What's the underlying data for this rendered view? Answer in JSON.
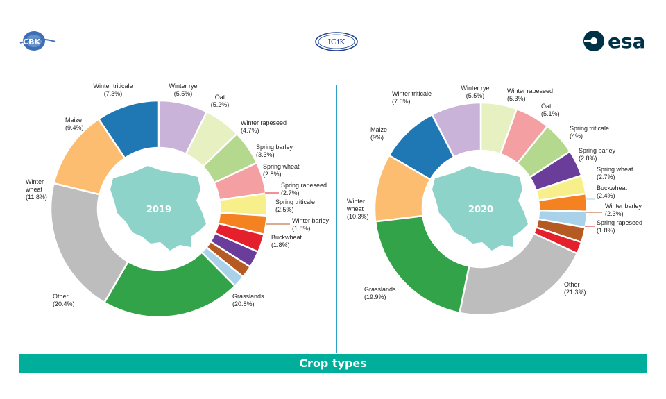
{
  "logos": {
    "left": "CBK",
    "center": "IGiK",
    "right": "esa"
  },
  "footer": {
    "title": "Crop types"
  },
  "colors": {
    "Winter triticale": "#c9b3d9",
    "Winter rye": "#e6f0c0",
    "Oat": "#b4d98e",
    "Winter rapeseed": "#f4a0a2",
    "Spring barley": "#f7f08a",
    "Spring wheat": "#f58220",
    "Spring rapeseed": "#e3202c",
    "Spring triticale": "#6a3d9a",
    "Winter barley": "#b65a24",
    "Buckwheat": "#a9d1ea",
    "Grasslands": "#33a34a",
    "Other": "#bdbdbd",
    "Winter wheat": "#fdbd70",
    "Maize": "#1f78b4",
    "map": "#8ed3c9"
  },
  "chart_data": [
    {
      "type": "pie",
      "center_label": "2019",
      "slices": [
        {
          "name": "Winter triticale",
          "value": 7.3,
          "label": "Winter triticale",
          "pct": "(7.3%)"
        },
        {
          "name": "Winter rye",
          "value": 5.5,
          "label": "Winter rye",
          "pct": "(5.5%)"
        },
        {
          "name": "Oat",
          "value": 5.2,
          "label": "Oat",
          "pct": "(5.2%)"
        },
        {
          "name": "Winter rapeseed",
          "value": 4.7,
          "label": "Winter rapeseed",
          "pct": "(4.7%)"
        },
        {
          "name": "Spring barley",
          "value": 3.3,
          "label": "Spring barley",
          "pct": "(3.3%)"
        },
        {
          "name": "Spring wheat",
          "value": 2.8,
          "label": "Spring wheat",
          "pct": "(2.8%)"
        },
        {
          "name": "Spring rapeseed",
          "value": 2.7,
          "label": "Spring rapeseed",
          "pct": "(2.7%)"
        },
        {
          "name": "Spring triticale",
          "value": 2.5,
          "label": "Spring triticale",
          "pct": "(2.5%)"
        },
        {
          "name": "Winter barley",
          "value": 1.8,
          "label": "Winter barley",
          "pct": "(1.8%)"
        },
        {
          "name": "Buckwheat",
          "value": 1.8,
          "label": "Buckwheat",
          "pct": "(1.8%)"
        },
        {
          "name": "Grasslands",
          "value": 20.8,
          "label": "Grasslands",
          "pct": "(20.8%)"
        },
        {
          "name": "Other",
          "value": 20.4,
          "label": "Other",
          "pct": "(20.4%)"
        },
        {
          "name": "Winter wheat",
          "value": 11.8,
          "label": "Winter wheat",
          "pct": "(11.8%)"
        },
        {
          "name": "Maize",
          "value": 9.4,
          "label": "Maize",
          "pct": "(9.4%)"
        }
      ]
    },
    {
      "type": "pie",
      "center_label": "2020",
      "slices": [
        {
          "name": "Winter rye",
          "value": 5.5,
          "label": "Winter rye",
          "pct": "(5.5%)"
        },
        {
          "name": "Winter rapeseed",
          "value": 5.3,
          "label": "Winter rapeseed",
          "pct": "(5.3%)"
        },
        {
          "name": "Oat",
          "value": 5.1,
          "label": "Oat",
          "pct": "(5.1%)"
        },
        {
          "name": "Spring triticale",
          "value": 4.0,
          "label": "Spring triticale",
          "pct": "(4%)"
        },
        {
          "name": "Spring barley",
          "value": 2.8,
          "label": "Spring barley",
          "pct": "(2.8%)"
        },
        {
          "name": "Spring wheat",
          "value": 2.7,
          "label": "Spring wheat",
          "pct": "(2.7%)"
        },
        {
          "name": "Buckwheat",
          "value": 2.4,
          "label": "Buckwheat",
          "pct": "(2.4%)"
        },
        {
          "name": "Winter barley",
          "value": 2.3,
          "label": "Winter barley",
          "pct": "(2.3%)"
        },
        {
          "name": "Spring rapeseed",
          "value": 1.8,
          "label": "Spring rapeseed",
          "pct": "(1.8%)"
        },
        {
          "name": "Other",
          "value": 21.3,
          "label": "Other",
          "pct": "(21.3%)"
        },
        {
          "name": "Grasslands",
          "value": 19.9,
          "label": "Grasslands",
          "pct": "(19.9%)"
        },
        {
          "name": "Winter wheat",
          "value": 10.3,
          "label": "Winter wheat",
          "pct": "(10.3%)"
        },
        {
          "name": "Maize",
          "value": 9.0,
          "label": "Maize",
          "pct": "(9%)"
        },
        {
          "name": "Winter triticale",
          "value": 7.6,
          "label": "Winter triticale",
          "pct": "(7.6%)"
        }
      ]
    }
  ]
}
